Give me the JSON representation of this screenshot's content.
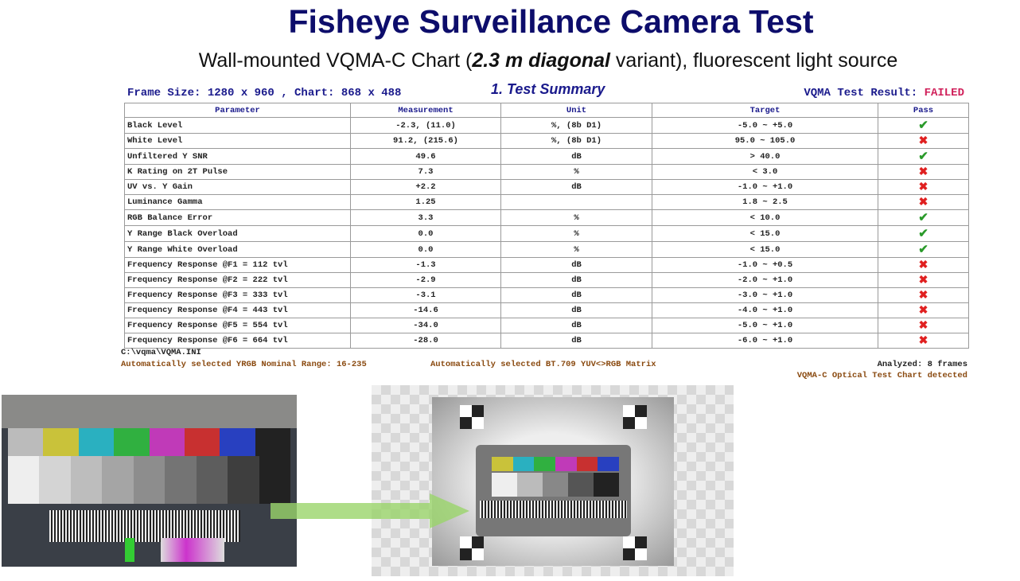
{
  "title": "Fisheye Surveillance Camera Test",
  "subtitle": {
    "pre": "Wall-mounted VQMA-C Chart (",
    "bold": "2.3 m diagonal",
    "post": " variant), fluorescent light source"
  },
  "frame_info": "Frame Size: 1280 x 960 , Chart:  868 x 488",
  "section_title": "1. Test Summary",
  "result": {
    "label": "VQMA Test Result: ",
    "value": "FAILED",
    "value_color": "#d0205a"
  },
  "table": {
    "headers": [
      "Parameter",
      "Measurement",
      "Unit",
      "Target",
      "Pass"
    ],
    "rows": [
      {
        "parameter": "Black Level",
        "measurement": "-2.3, (11.0)",
        "unit": "%, (8b D1)",
        "target": "-5.0 ~ +5.0",
        "pass": true
      },
      {
        "parameter": "White Level",
        "measurement": "91.2, (215.6)",
        "unit": "%, (8b D1)",
        "target": "95.0 ~ 105.0",
        "pass": false
      },
      {
        "parameter": "Unfiltered Y SNR",
        "measurement": "49.6",
        "unit": "dB",
        "target": "> 40.0",
        "pass": true
      },
      {
        "parameter": "K Rating on 2T Pulse",
        "measurement": "7.3",
        "unit": "%",
        "target": "< 3.0",
        "pass": false
      },
      {
        "parameter": "UV vs. Y Gain",
        "measurement": "+2.2",
        "unit": "dB",
        "target": "-1.0 ~ +1.0",
        "pass": false
      },
      {
        "parameter": "Luminance Gamma",
        "measurement": "1.25",
        "unit": "",
        "target": "1.8 ~ 2.5",
        "pass": false
      },
      {
        "parameter": "RGB Balance Error",
        "measurement": "3.3",
        "unit": "%",
        "target": "< 10.0",
        "pass": true
      },
      {
        "parameter": "Y Range Black Overload",
        "measurement": "0.0",
        "unit": "%",
        "target": "< 15.0",
        "pass": true
      },
      {
        "parameter": "Y Range White Overload",
        "measurement": "0.0",
        "unit": "%",
        "target": "< 15.0",
        "pass": true
      },
      {
        "parameter": "Frequency Response @F1 =  112 tvl",
        "measurement": "-1.3",
        "unit": "dB",
        "target": "-1.0 ~ +0.5",
        "pass": false
      },
      {
        "parameter": "Frequency Response @F2 =  222 tvl",
        "measurement": "-2.9",
        "unit": "dB",
        "target": "-2.0 ~ +1.0",
        "pass": false
      },
      {
        "parameter": "Frequency Response @F3 =  333 tvl",
        "measurement": "-3.1",
        "unit": "dB",
        "target": "-3.0 ~ +1.0",
        "pass": false
      },
      {
        "parameter": "Frequency Response @F4 =  443 tvl",
        "measurement": "-14.6",
        "unit": "dB",
        "target": "-4.0 ~ +1.0",
        "pass": false
      },
      {
        "parameter": "Frequency Response @F5 =  554 tvl",
        "measurement": "-34.0",
        "unit": "dB",
        "target": "-5.0 ~ +1.0",
        "pass": false
      },
      {
        "parameter": "Frequency Response @F6 =  664 tvl",
        "measurement": "-28.0",
        "unit": "dB",
        "target": "-6.0 ~ +1.0",
        "pass": false
      }
    ],
    "pass_icon": "check-icon",
    "fail_icon": "x-icon",
    "pass_color": "#2a9a2a",
    "fail_color": "#e02020"
  },
  "footer": {
    "ini_path": "C:\\vqma\\VQMA.INI",
    "range_note": "Automatically selected YRGB Nominal Range: 16-235",
    "matrix_note": "Automatically selected BT.709 YUV<>RGB Matrix",
    "analyzed": "Analyzed:  8 frames",
    "detected": "VQMA-C Optical Test Chart detected"
  },
  "images": {
    "left": "test-chart-photo",
    "right": "fisheye-camera-capture",
    "arrow": "arrow-right-icon"
  }
}
